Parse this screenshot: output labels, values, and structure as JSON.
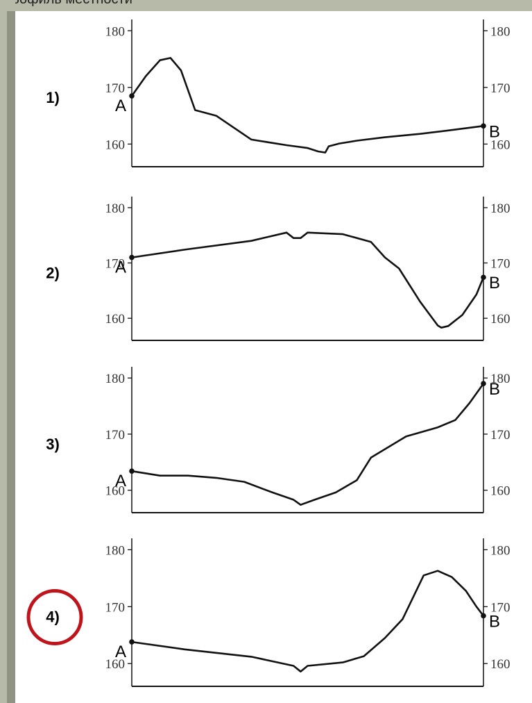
{
  "header": {
    "text": "профиль местности"
  },
  "answer": {
    "highlighted": "4)",
    "circle_color": "#c0141c"
  },
  "chart_data": [
    {
      "type": "line",
      "label": "1)",
      "start_label": "A",
      "end_label": "B",
      "y_ticks": [
        "180",
        "170",
        "160"
      ],
      "ylim": [
        156,
        182
      ],
      "xlim": [
        0,
        100
      ],
      "x": [
        0,
        4,
        8,
        11,
        14,
        18,
        24,
        34,
        44,
        50,
        53,
        55,
        56,
        59,
        64,
        72,
        82,
        90,
        100
      ],
      "y": [
        168.5,
        172,
        174.8,
        175.2,
        173,
        166,
        165,
        160.8,
        159.8,
        159.3,
        158.7,
        158.5,
        159.6,
        160.1,
        160.6,
        161.2,
        161.8,
        162.4,
        163.2
      ]
    },
    {
      "type": "line",
      "label": "2)",
      "start_label": "A",
      "end_label": "B",
      "y_ticks": [
        "180",
        "170",
        "160"
      ],
      "ylim": [
        156,
        182
      ],
      "xlim": [
        0,
        100
      ],
      "x": [
        0,
        15,
        34,
        44,
        46,
        48,
        50,
        60,
        68,
        72,
        76,
        82,
        87,
        88,
        90,
        94,
        98,
        100
      ],
      "y": [
        171,
        172.4,
        174,
        175.5,
        174.5,
        174.5,
        175.5,
        175.2,
        173.8,
        171,
        169,
        163,
        158.7,
        158.3,
        158.6,
        160.6,
        164.3,
        167.4
      ]
    },
    {
      "type": "line",
      "label": "3)",
      "start_label": "A",
      "end_label": "B",
      "y_ticks": [
        "180",
        "170",
        "160"
      ],
      "ylim": [
        156,
        182
      ],
      "xlim": [
        0,
        100
      ],
      "x": [
        0,
        8,
        16,
        24,
        32,
        40,
        46,
        48,
        52,
        58,
        64,
        68,
        78,
        87,
        92,
        96,
        100
      ],
      "y": [
        163.4,
        162.6,
        162.6,
        162.2,
        161.5,
        159.6,
        158.3,
        157.4,
        158.3,
        159.6,
        161.8,
        165.8,
        169.6,
        171.2,
        172.5,
        175.5,
        179
      ]
    },
    {
      "type": "line",
      "label": "4)",
      "start_label": "A",
      "end_label": "B",
      "y_ticks": [
        "180",
        "170",
        "160"
      ],
      "ylim": [
        156,
        182
      ],
      "xlim": [
        0,
        100
      ],
      "x": [
        0,
        15,
        34,
        46,
        48,
        50,
        60,
        66,
        72,
        77,
        83,
        87,
        91,
        95,
        98,
        100
      ],
      "y": [
        163.8,
        162.5,
        161.2,
        159.6,
        158.6,
        159.6,
        160.2,
        161.3,
        164.5,
        167.8,
        175.5,
        176.3,
        175.2,
        172.8,
        170,
        168.4
      ]
    }
  ]
}
